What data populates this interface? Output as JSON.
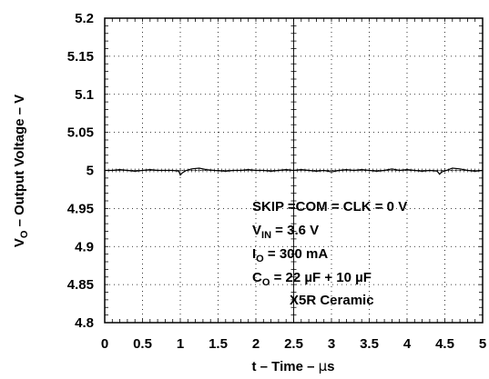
{
  "chart_data": {
    "type": "line",
    "x_ticks": [
      "0",
      "0.5",
      "1",
      "1.5",
      "2",
      "2.5",
      "3",
      "3.5",
      "4",
      "4.5",
      "5"
    ],
    "y_ticks": [
      "4.8",
      "4.85",
      "4.9",
      "4.95",
      "5",
      "5.05",
      "5.1",
      "5.15",
      "5.2"
    ],
    "xlim": [
      0,
      5
    ],
    "ylim": [
      4.8,
      5.2
    ],
    "xlabel": {
      "pre": "t – Time – ",
      "mu": "µ",
      "post": "s"
    },
    "ylabel": {
      "v": "V",
      "sub": "O",
      "rest": " – Output Voltage – V"
    },
    "grid": "dotted",
    "series": [
      {
        "color": "#000000",
        "x": [
          0,
          0.1,
          0.2,
          0.3,
          0.4,
          0.5,
          0.6,
          0.7,
          0.8,
          0.9,
          0.98,
          1.0,
          1.03,
          1.08,
          1.15,
          1.25,
          1.35,
          1.45,
          1.6,
          1.7,
          1.8,
          1.9,
          2.0,
          2.1,
          2.2,
          2.3,
          2.4,
          2.5,
          2.6,
          2.7,
          2.8,
          2.9,
          3.0,
          3.1,
          3.2,
          3.3,
          3.4,
          3.5,
          3.6,
          3.7,
          3.8,
          3.9,
          4.0,
          4.1,
          4.2,
          4.3,
          4.4,
          4.43,
          4.46,
          4.52,
          4.6,
          4.7,
          4.8,
          4.9,
          5.0
        ],
        "values": [
          5.0,
          5.0,
          5.001,
          5.0,
          4.999,
          5.0,
          5.001,
          5.0,
          5.0,
          5.0,
          4.999,
          4.994,
          4.997,
          5.0,
          5.002,
          5.003,
          5.001,
          5.0,
          4.999,
          5.0,
          5.0,
          5.001,
          5.0,
          5.0,
          4.999,
          5.0,
          5.001,
          5.0,
          5.001,
          5.0,
          4.999,
          5.0,
          4.998,
          5.0,
          5.001,
          5.0,
          5.001,
          5.0,
          4.999,
          5.0,
          5.002,
          5.0,
          5.001,
          5.0,
          4.999,
          5.0,
          4.999,
          4.995,
          4.998,
          5.0,
          5.003,
          5.002,
          5.0,
          4.999,
          5.0
        ]
      }
    ],
    "annotations": [
      {
        "segments": [
          {
            "t": "SKIP =COM = CLK = 0 V"
          }
        ]
      },
      {
        "segments": [
          {
            "t": "V"
          },
          {
            "t": "IN",
            "sub": true
          },
          {
            "t": " = 3.6 V"
          }
        ]
      },
      {
        "segments": [
          {
            "t": "I"
          },
          {
            "t": "O",
            "sub": true
          },
          {
            "t": " = 300 mA"
          }
        ]
      },
      {
        "segments": [
          {
            "t": "C"
          },
          {
            "t": "O",
            "sub": true
          },
          {
            "t": " = 22 µF + 10 µF"
          }
        ]
      },
      {
        "segments": [
          {
            "t": "X5R Ceramic"
          }
        ]
      }
    ]
  }
}
